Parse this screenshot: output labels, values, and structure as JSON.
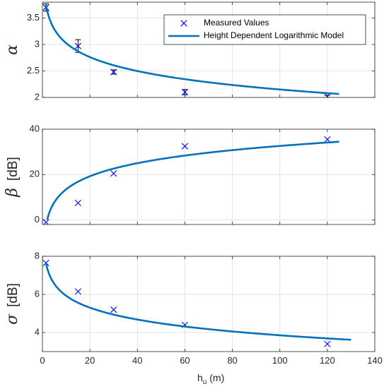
{
  "chart_data": [
    {
      "type": "scatter+line",
      "ylabel_symbol": "α",
      "ylabel_unit": "",
      "xlim": [
        0,
        140
      ],
      "ylim": [
        2,
        3.8
      ],
      "yticks": [
        2,
        2.5,
        3,
        3.5
      ],
      "yticklabels": [
        "2",
        "2.5",
        "3",
        "3.5"
      ],
      "grid": true,
      "legend": {
        "position": "top-right",
        "entries": [
          "Measured Values",
          "Height Dependent Logarithmic Model"
        ]
      },
      "series": [
        {
          "name": "Measured Values",
          "kind": "markers",
          "marker": "x",
          "color": "#0000ff",
          "x": [
            1.5,
            15,
            30,
            60,
            120
          ],
          "y": [
            3.7,
            2.97,
            2.48,
            2.1,
            2.02
          ],
          "yerr": [
            0.07,
            0.12,
            0.04,
            0.05,
            0.02
          ]
        },
        {
          "name": "Height Dependent Logarithmic Model",
          "kind": "line",
          "color": "#0072bd",
          "model": {
            "a": 3.9,
            "b": -0.38,
            "xmin": 1.5,
            "xmax": 125
          }
        }
      ]
    },
    {
      "type": "scatter+line",
      "ylabel_symbol": "β",
      "ylabel_unit": "[dB]",
      "xlim": [
        0,
        140
      ],
      "ylim": [
        -2,
        40
      ],
      "yticks": [
        0,
        20,
        40
      ],
      "yticklabels": [
        "0",
        "20",
        "40"
      ],
      "grid": true,
      "series": [
        {
          "name": "Measured Values",
          "kind": "markers",
          "marker": "x",
          "color": "#0000ff",
          "x": [
            1.5,
            15,
            30,
            60,
            120
          ],
          "y": [
            -1,
            7.5,
            20.5,
            32.5,
            35.5
          ]
        },
        {
          "name": "Height Dependent Logarithmic Model",
          "kind": "line",
          "color": "#0072bd",
          "model": {
            "a": -5.6,
            "b": 8.3,
            "xmin": 2,
            "xmax": 125
          }
        }
      ]
    },
    {
      "type": "scatter+line",
      "ylabel_symbol": "σ",
      "ylabel_unit": "[dB]",
      "xlabel": "h",
      "xlabel_sub": "u",
      "xlabel_unit": "(m)",
      "xlim": [
        0,
        140
      ],
      "ylim": [
        3,
        8
      ],
      "xticks": [
        0,
        20,
        40,
        60,
        80,
        100,
        120,
        140
      ],
      "xticklabels": [
        "0",
        "20",
        "40",
        "60",
        "80",
        "100",
        "120",
        "140"
      ],
      "yticks": [
        4,
        6,
        8
      ],
      "yticklabels": [
        "4",
        "6",
        "8"
      ],
      "grid": true,
      "series": [
        {
          "name": "Measured Values",
          "kind": "markers",
          "marker": "x",
          "color": "#0000ff",
          "x": [
            1.5,
            15,
            30,
            60,
            120
          ],
          "y": [
            7.65,
            6.15,
            5.2,
            4.4,
            3.4
          ]
        },
        {
          "name": "Height Dependent Logarithmic Model",
          "kind": "line",
          "color": "#0072bd",
          "model": {
            "a": 8.0,
            "b": -0.9,
            "xmin": 1.5,
            "xmax": 130
          }
        }
      ]
    }
  ]
}
